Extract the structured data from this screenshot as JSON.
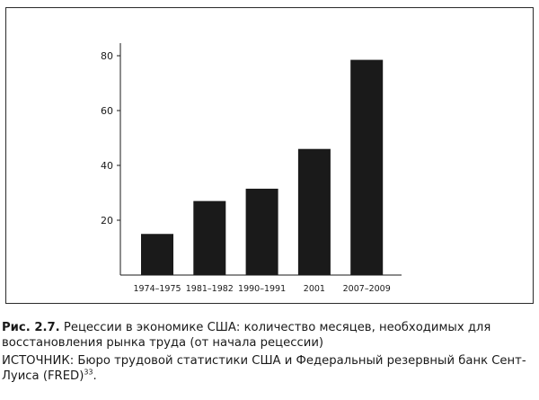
{
  "chart_data": {
    "type": "bar",
    "categories": [
      "1974–1975",
      "1981–1982",
      "1990–1991",
      "2001",
      "2007–2009"
    ],
    "values": [
      15,
      27,
      31.5,
      46,
      78.5
    ],
    "ylim": [
      0,
      80
    ],
    "yticks": [
      20,
      40,
      60,
      80
    ],
    "title": "",
    "xlabel": "",
    "ylabel": "",
    "grid": false,
    "bar_color": "#1a1a1a"
  },
  "caption": {
    "label": "Рис. 2.7.",
    "text": " Рецессии в экономике США: количество месяцев, необходимых для восстановления рынка труда (от начала рецессии)"
  },
  "source": {
    "text": "ИСТОЧНИК: Бюро трудовой статистики США и Федеральный резервный банк Сент-Луиса (FRED)",
    "footnote": "33",
    "end": "."
  }
}
